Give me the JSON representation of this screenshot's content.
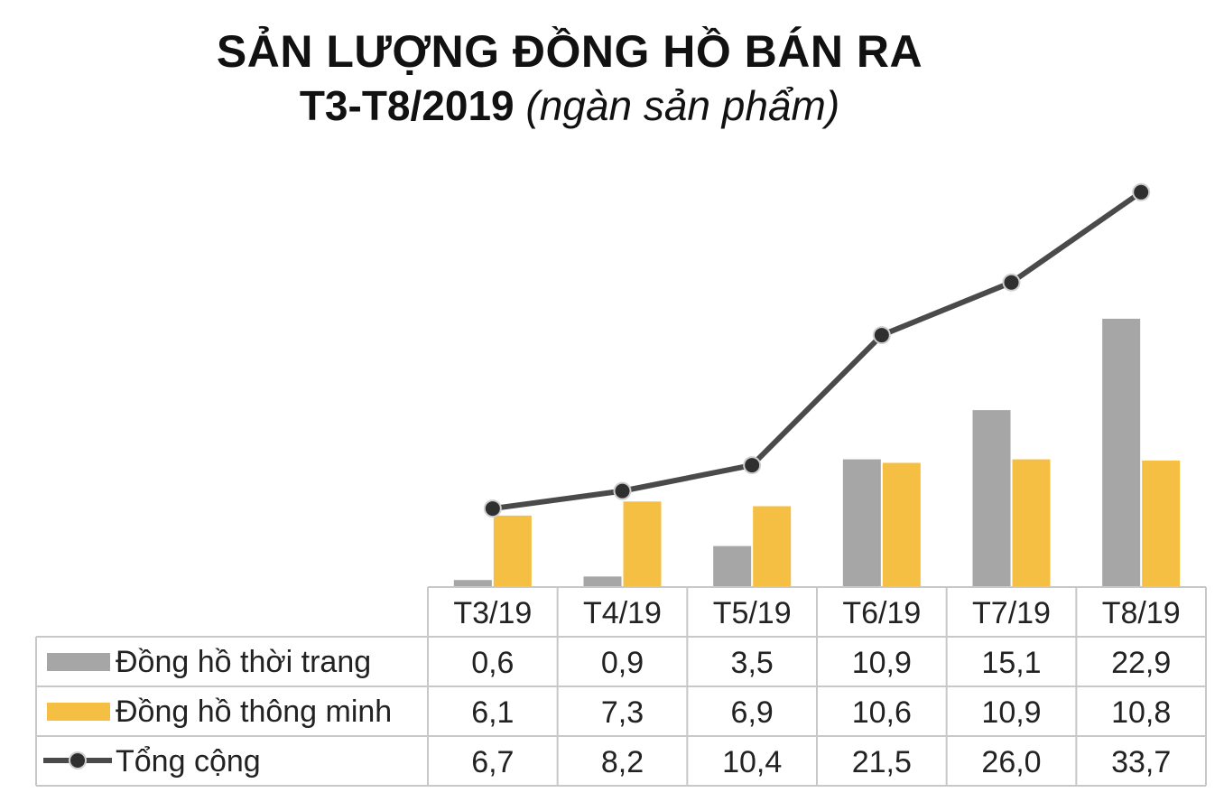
{
  "title": {
    "line1": "SẢN LƯỢNG ĐỒNG HỒ BÁN RA",
    "line2": "T3-T8/2019",
    "unit": "(ngàn sản phẩm)"
  },
  "chart_data": {
    "type": "bar",
    "title": "SẢN LƯỢNG ĐỒNG HỒ BÁN RA T3-T8/2019 (ngàn sản phẩm)",
    "categories": [
      "T3/19",
      "T4/19",
      "T5/19",
      "T6/19",
      "T7/19",
      "T8/19"
    ],
    "series": [
      {
        "name": "Đồng hồ thời trang",
        "kind": "bar",
        "color": "#a6a6a6",
        "values": [
          0.6,
          0.9,
          3.5,
          10.9,
          15.1,
          22.9
        ],
        "labels": [
          "0,6",
          "0,9",
          "3,5",
          "10,9",
          "15,1",
          "22,9"
        ]
      },
      {
        "name": "Đồng hồ thông minh",
        "kind": "bar",
        "color": "#f4bf42",
        "values": [
          6.1,
          7.3,
          6.9,
          10.6,
          10.9,
          10.8
        ],
        "labels": [
          "6,1",
          "7,3",
          "6,9",
          "10,6",
          "10,9",
          "10,8"
        ]
      },
      {
        "name": "Tổng cộng",
        "kind": "line",
        "color": "#4a4a4a",
        "values": [
          6.7,
          8.2,
          10.4,
          21.5,
          26.0,
          33.7
        ],
        "labels": [
          "6,7",
          "8,2",
          "10,4",
          "21,5",
          "26,0",
          "33,7"
        ]
      }
    ],
    "ylim": [
      0,
      37
    ],
    "grid": false,
    "legend": "data-table",
    "data_table": true
  }
}
